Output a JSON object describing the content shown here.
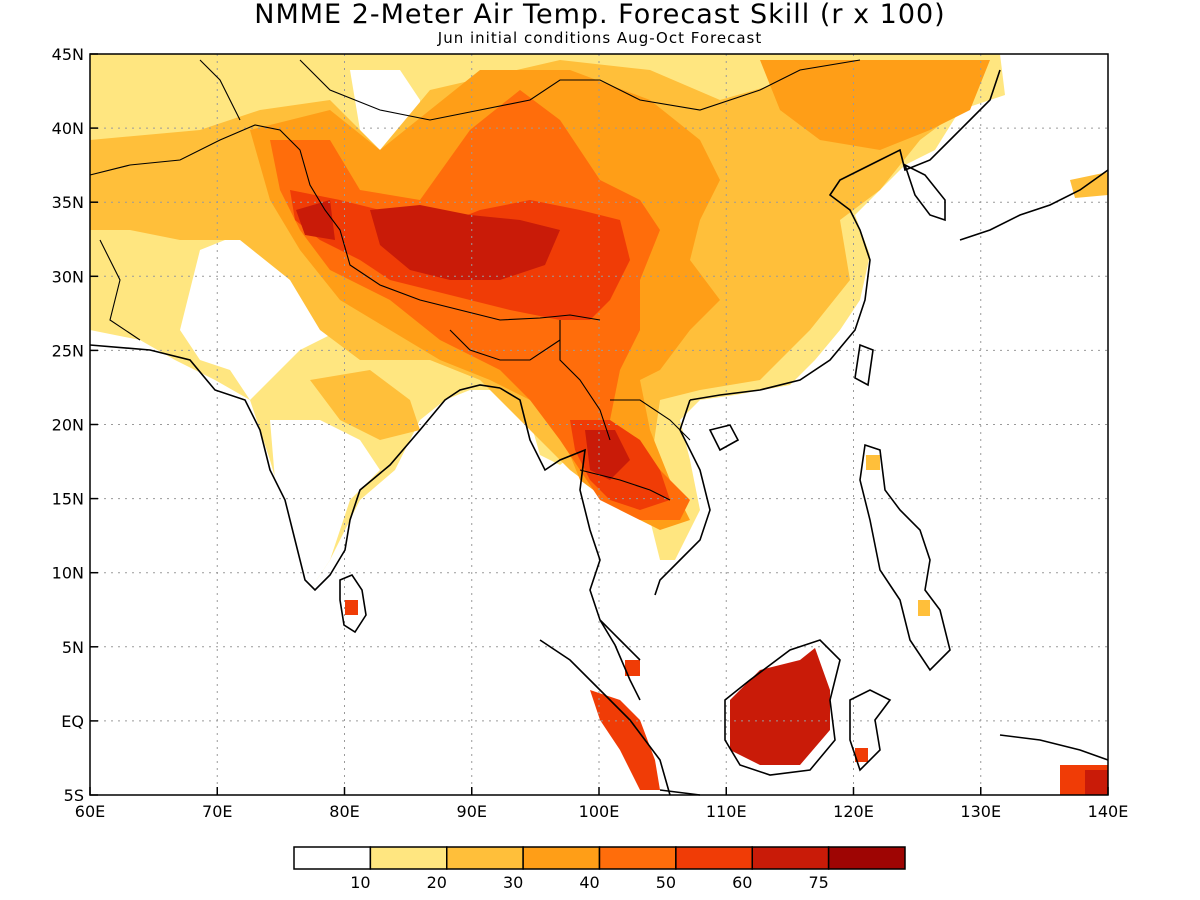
{
  "title": "NMME 2-Meter Air Temp. Forecast Skill (r x 100)",
  "subtitle": "Jun initial conditions  Aug-Oct Forecast",
  "map": {
    "lon_range": [
      60,
      140
    ],
    "lat_range": [
      -5,
      45
    ],
    "x_tick_labels": [
      "60E",
      "70E",
      "80E",
      "90E",
      "100E",
      "110E",
      "120E",
      "130E",
      "140E"
    ],
    "y_tick_labels": [
      "5S",
      "EQ",
      "5N",
      "10N",
      "15N",
      "20N",
      "25N",
      "30N",
      "35N",
      "40N",
      "45N"
    ],
    "grid": "dotted"
  },
  "legend": {
    "boundaries": [
      "10",
      "20",
      "30",
      "40",
      "50",
      "60",
      "75"
    ],
    "colors": [
      "#ffffff",
      "#ffe680",
      "#ffbf3a",
      "#ff9e17",
      "#ff6d0b",
      "#f03c06",
      "#c91b08",
      "#9e0503"
    ]
  },
  "skill_regions": [
    {
      "name": "tibetan-plateau-core",
      "level": "60-75"
    },
    {
      "name": "indochina-core",
      "level": "60-75"
    },
    {
      "name": "borneo",
      "level": "60-75"
    },
    {
      "name": "southeast-china",
      "level": "20-40"
    },
    {
      "name": "india",
      "level": "0-30"
    }
  ]
}
